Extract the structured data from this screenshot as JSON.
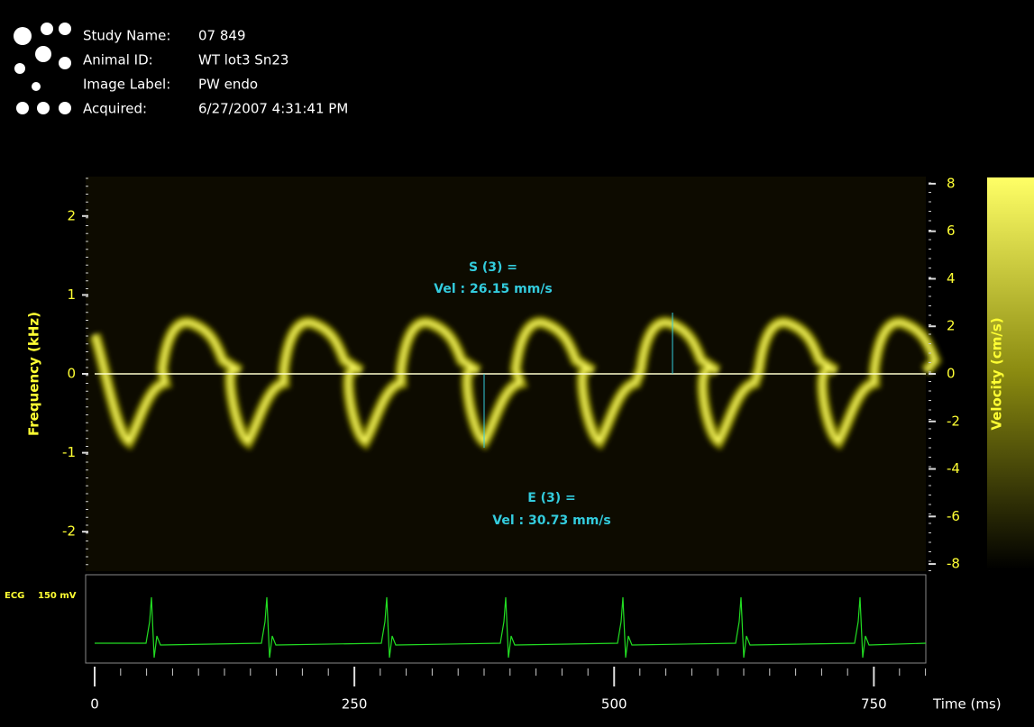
{
  "header": {
    "fields": [
      {
        "label": "Study Name:",
        "value": "07 849"
      },
      {
        "label": "Animal ID:",
        "value": "WT lot3  Sn23"
      },
      {
        "label": "Image Label:",
        "value": "PW endo"
      },
      {
        "label": "Acquired:",
        "value": "6/27/2007 4:31:41 PM"
      }
    ]
  },
  "frequency_axis": {
    "label": "Frequency (kHz)",
    "range": [
      -2.5,
      2.5
    ],
    "ticks": [
      2,
      1,
      0,
      -1,
      -2
    ]
  },
  "velocity_axis": {
    "label": "Velocity (cm/s)",
    "range": [
      -8.3,
      8.3
    ],
    "ticks": [
      8,
      6,
      4,
      2,
      0,
      -2,
      -4,
      -6,
      -8
    ]
  },
  "time_axis": {
    "label": "Time (ms)",
    "range": [
      0,
      800
    ],
    "ticks": [
      0,
      250,
      500,
      750
    ]
  },
  "measurements": [
    {
      "name": "S (3) =",
      "value": "Vel : 26.15 mm/s"
    },
    {
      "name": "E (3) =",
      "value": "Vel : 30.73 mm/s"
    }
  ],
  "ecg": {
    "label": "ECG",
    "scale": "150 mV"
  }
}
